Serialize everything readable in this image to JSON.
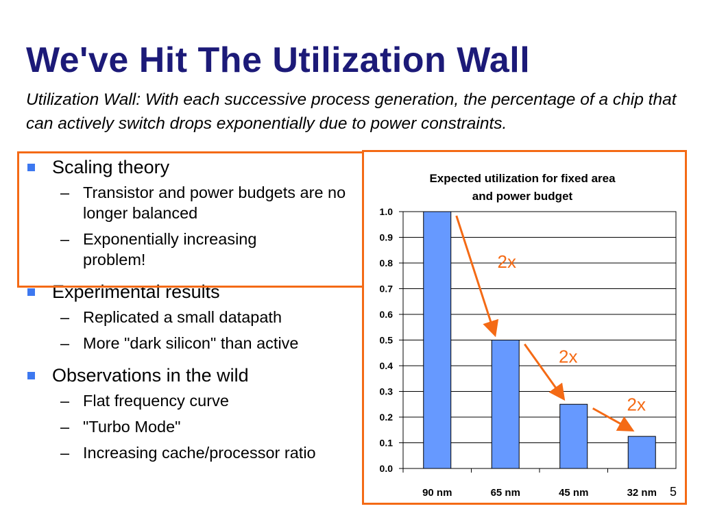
{
  "slide": {
    "title": "We've Hit The Utilization Wall",
    "subtitle": "Utilization Wall: With each successive process generation, the percentage of a chip that can actively switch drops exponentially due to power constraints.",
    "page_number": "5"
  },
  "bullets": [
    {
      "label": "Scaling theory",
      "subs": [
        "Transistor and power budgets are no longer balanced",
        "Exponentially increasing problem!"
      ]
    },
    {
      "label": "Experimental results",
      "subs": [
        "Replicated a small datapath",
        "More \"dark silicon\" than active"
      ]
    },
    {
      "label": "Observations in the wild",
      "subs": [
        "Flat frequency curve",
        "\"Turbo Mode\"",
        "Increasing cache/processor ratio"
      ]
    }
  ],
  "colors": {
    "title": "#1c1a78",
    "bar": "#6699ff",
    "highlight": "#f46a15",
    "bullet_marker": "#3d78f0"
  },
  "chart_data": {
    "type": "bar",
    "title": "Expected utilization for fixed area and power budget",
    "title_lines": [
      "Expected utilization for fixed area",
      "and power budget"
    ],
    "categories": [
      "90 nm",
      "65 nm",
      "45 nm",
      "32 nm"
    ],
    "values": [
      1.0,
      0.5,
      0.25,
      0.125
    ],
    "ylim": [
      0,
      1.0
    ],
    "yticks": [
      "0.0",
      "0.1",
      "0.2",
      "0.3",
      "0.4",
      "0.5",
      "0.6",
      "0.7",
      "0.8",
      "0.9",
      "1.0"
    ],
    "xlabel": "",
    "ylabel": "",
    "grid": true,
    "annotations": [
      {
        "text": "2x",
        "from": "90 nm",
        "to": "65 nm"
      },
      {
        "text": "2x",
        "from": "65 nm",
        "to": "45 nm"
      },
      {
        "text": "2x",
        "from": "45 nm",
        "to": "32 nm"
      }
    ]
  }
}
